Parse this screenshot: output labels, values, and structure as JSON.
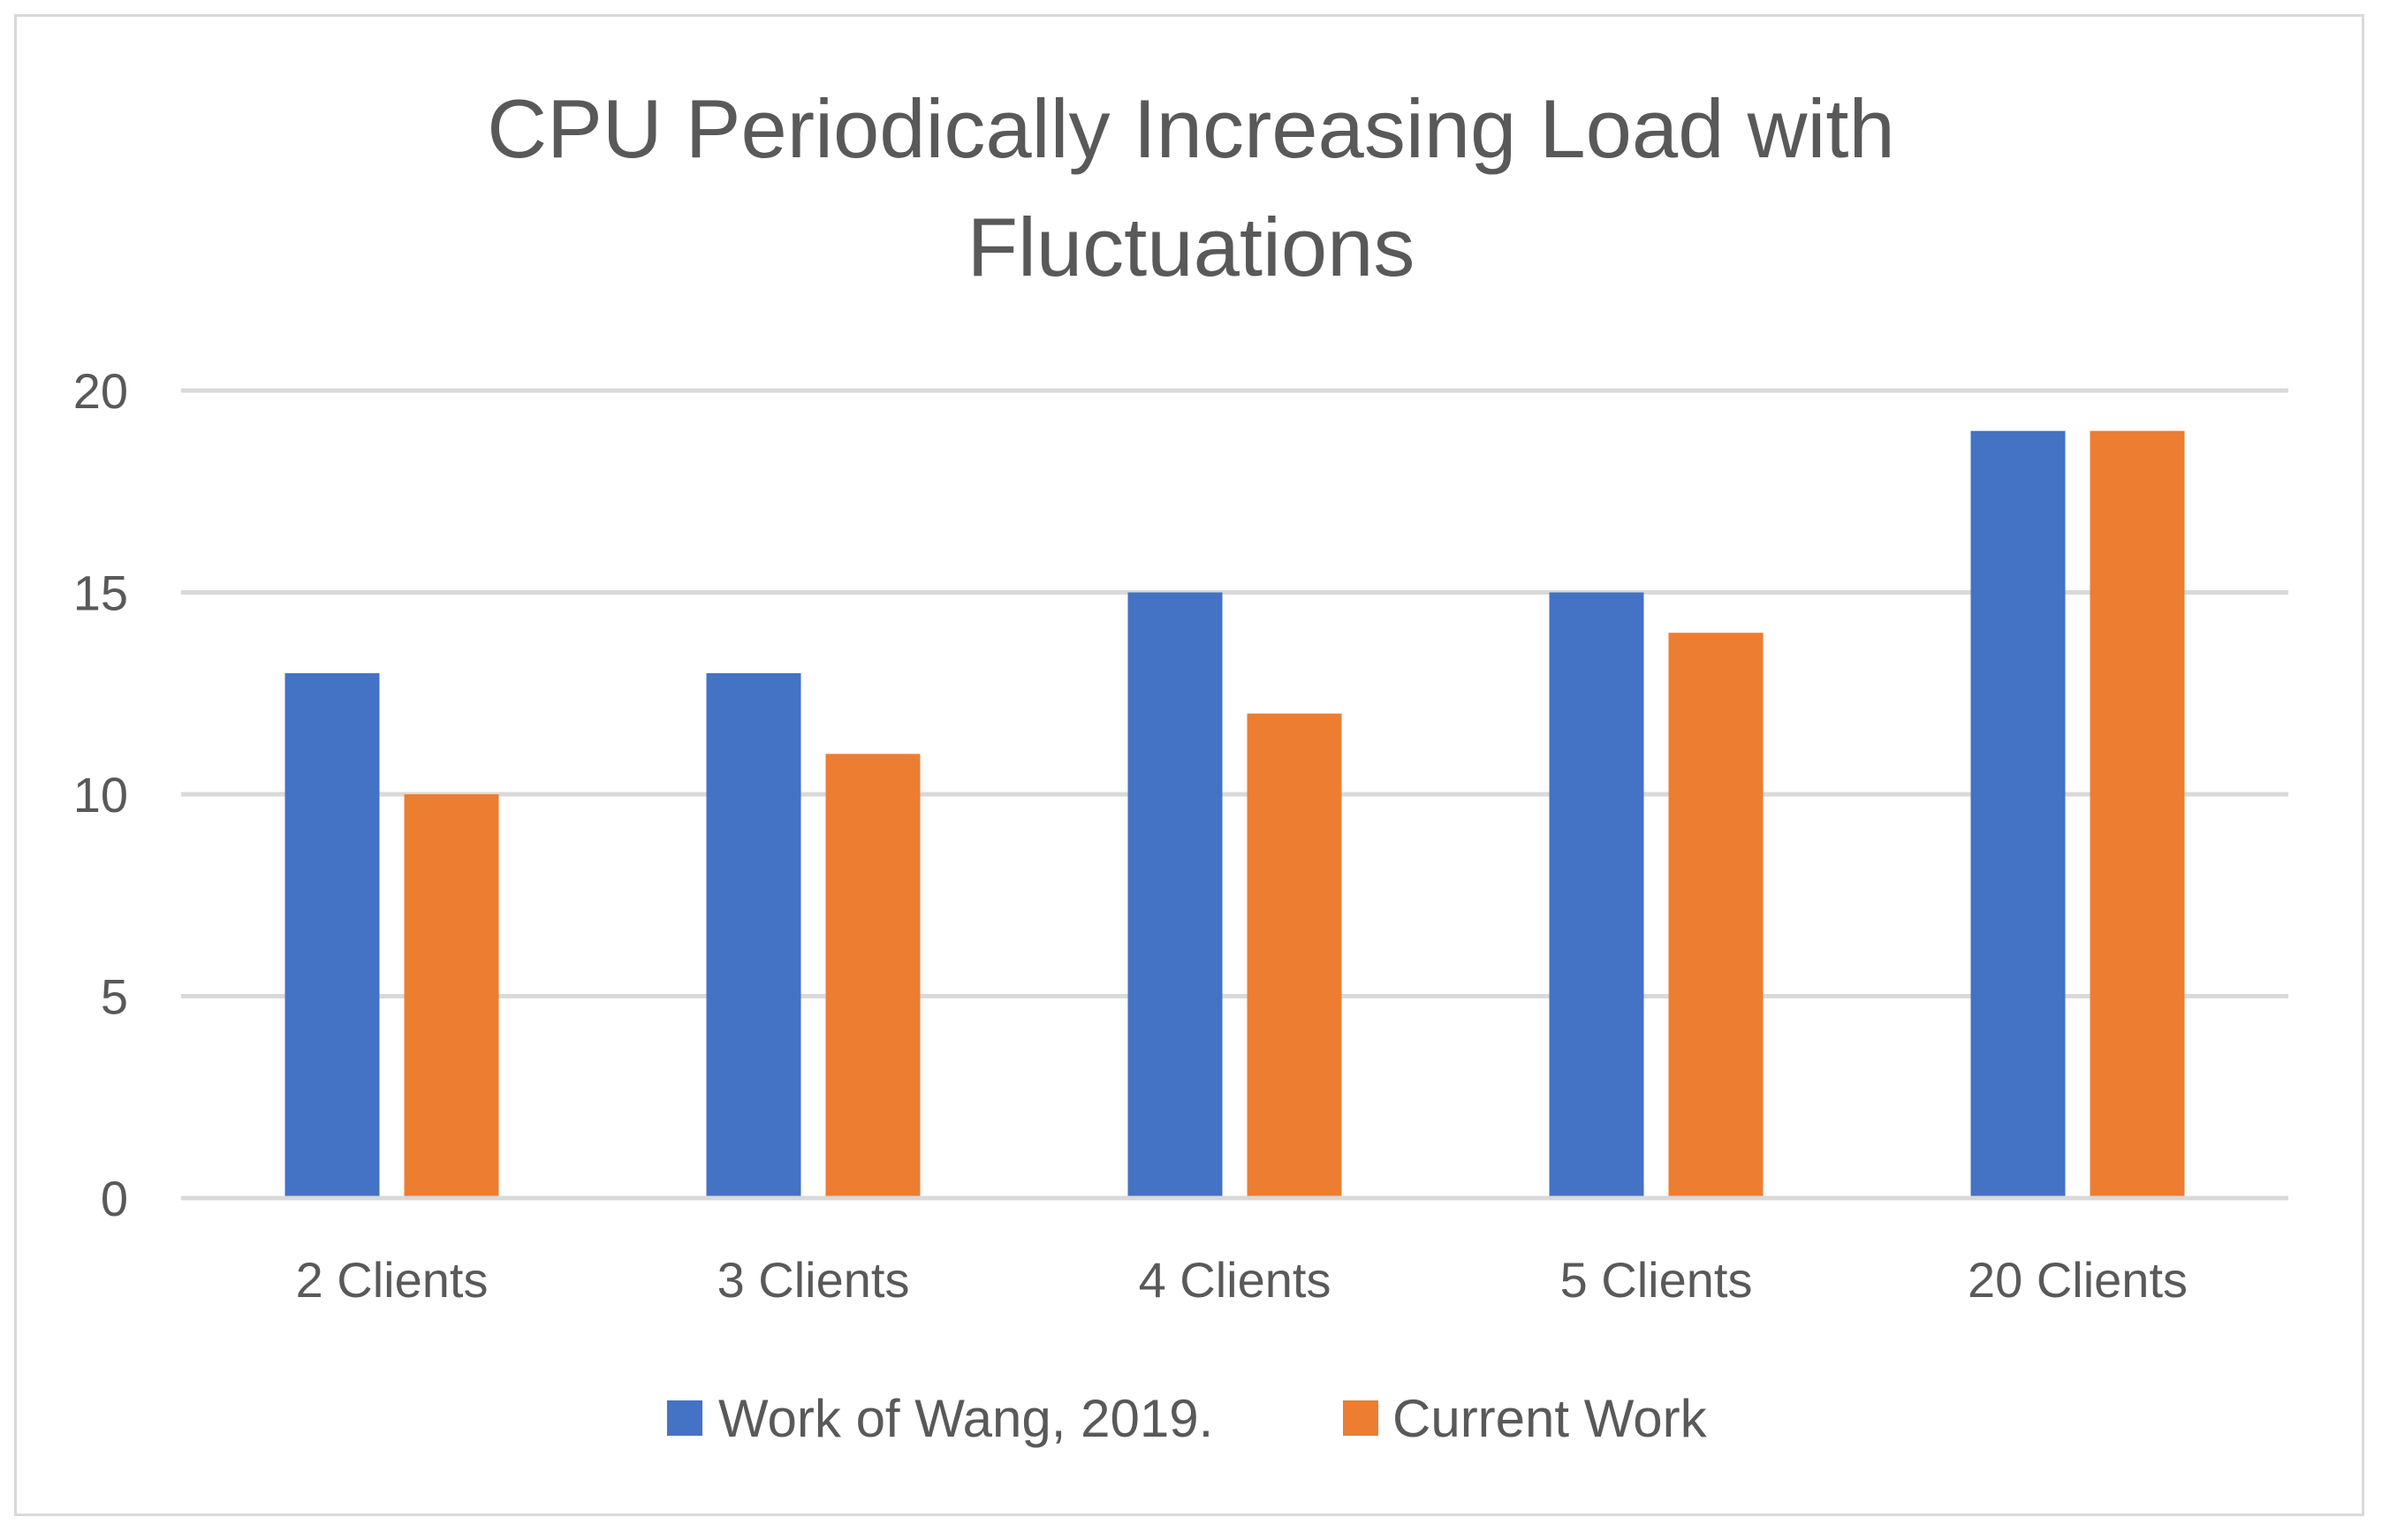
{
  "chart_data": {
    "type": "bar",
    "title_lines": [
      "CPU Periodically Increasing Load with",
      "Fluctuations"
    ],
    "categories": [
      "2 Clients",
      "3 Clients",
      "4 Clients",
      "5 Clients",
      "20 Clients"
    ],
    "series": [
      {
        "name": "Work of Wang, 2019.",
        "color": "#4472c4",
        "values": [
          13,
          13,
          15,
          15,
          19
        ]
      },
      {
        "name": "Current Work",
        "color": "#ed7d31",
        "values": [
          10,
          11,
          12,
          14,
          19
        ]
      }
    ],
    "ylim": [
      0,
      20
    ],
    "yticks": [
      0,
      5,
      10,
      15,
      20
    ],
    "grid": true,
    "gridline_color": "#d9d9d9",
    "legend_position": "bottom",
    "xlabel": "",
    "ylabel": ""
  }
}
